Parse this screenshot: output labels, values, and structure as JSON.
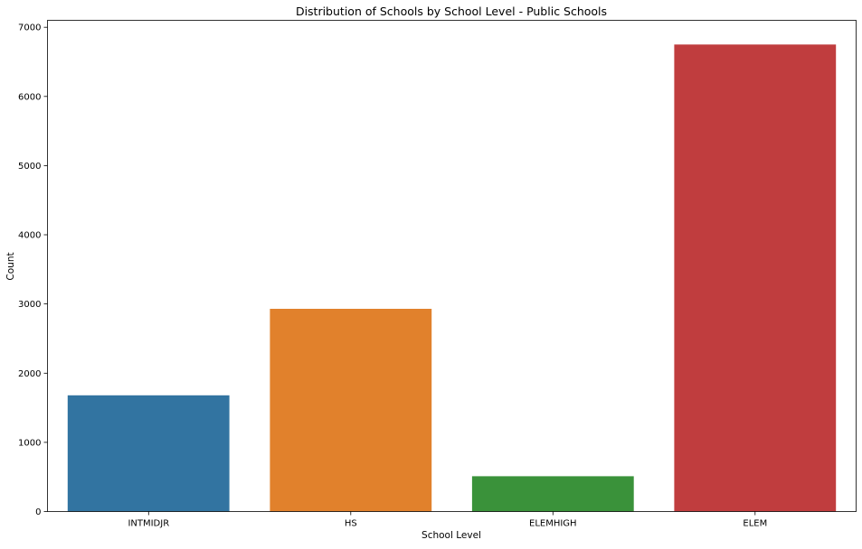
{
  "chart_data": {
    "type": "bar",
    "title": "Distribution of Schools by School Level - Public Schools",
    "xlabel": "School Level",
    "ylabel": "Count",
    "categories": [
      "INTMIDJR",
      "HS",
      "ELEMHIGH",
      "ELEM"
    ],
    "values": [
      1680,
      2930,
      510,
      6750
    ],
    "ylim": [
      0,
      7100
    ],
    "yticks": [
      0,
      1000,
      2000,
      3000,
      4000,
      5000,
      6000,
      7000
    ],
    "ytick_labels": [
      "0",
      "1000",
      "2000",
      "3000",
      "4000",
      "5000",
      "6000",
      "7000"
    ],
    "colors": [
      "#3274a1",
      "#e1812c",
      "#3a923a",
      "#c03d3e"
    ],
    "grid": false,
    "legend": "none"
  }
}
